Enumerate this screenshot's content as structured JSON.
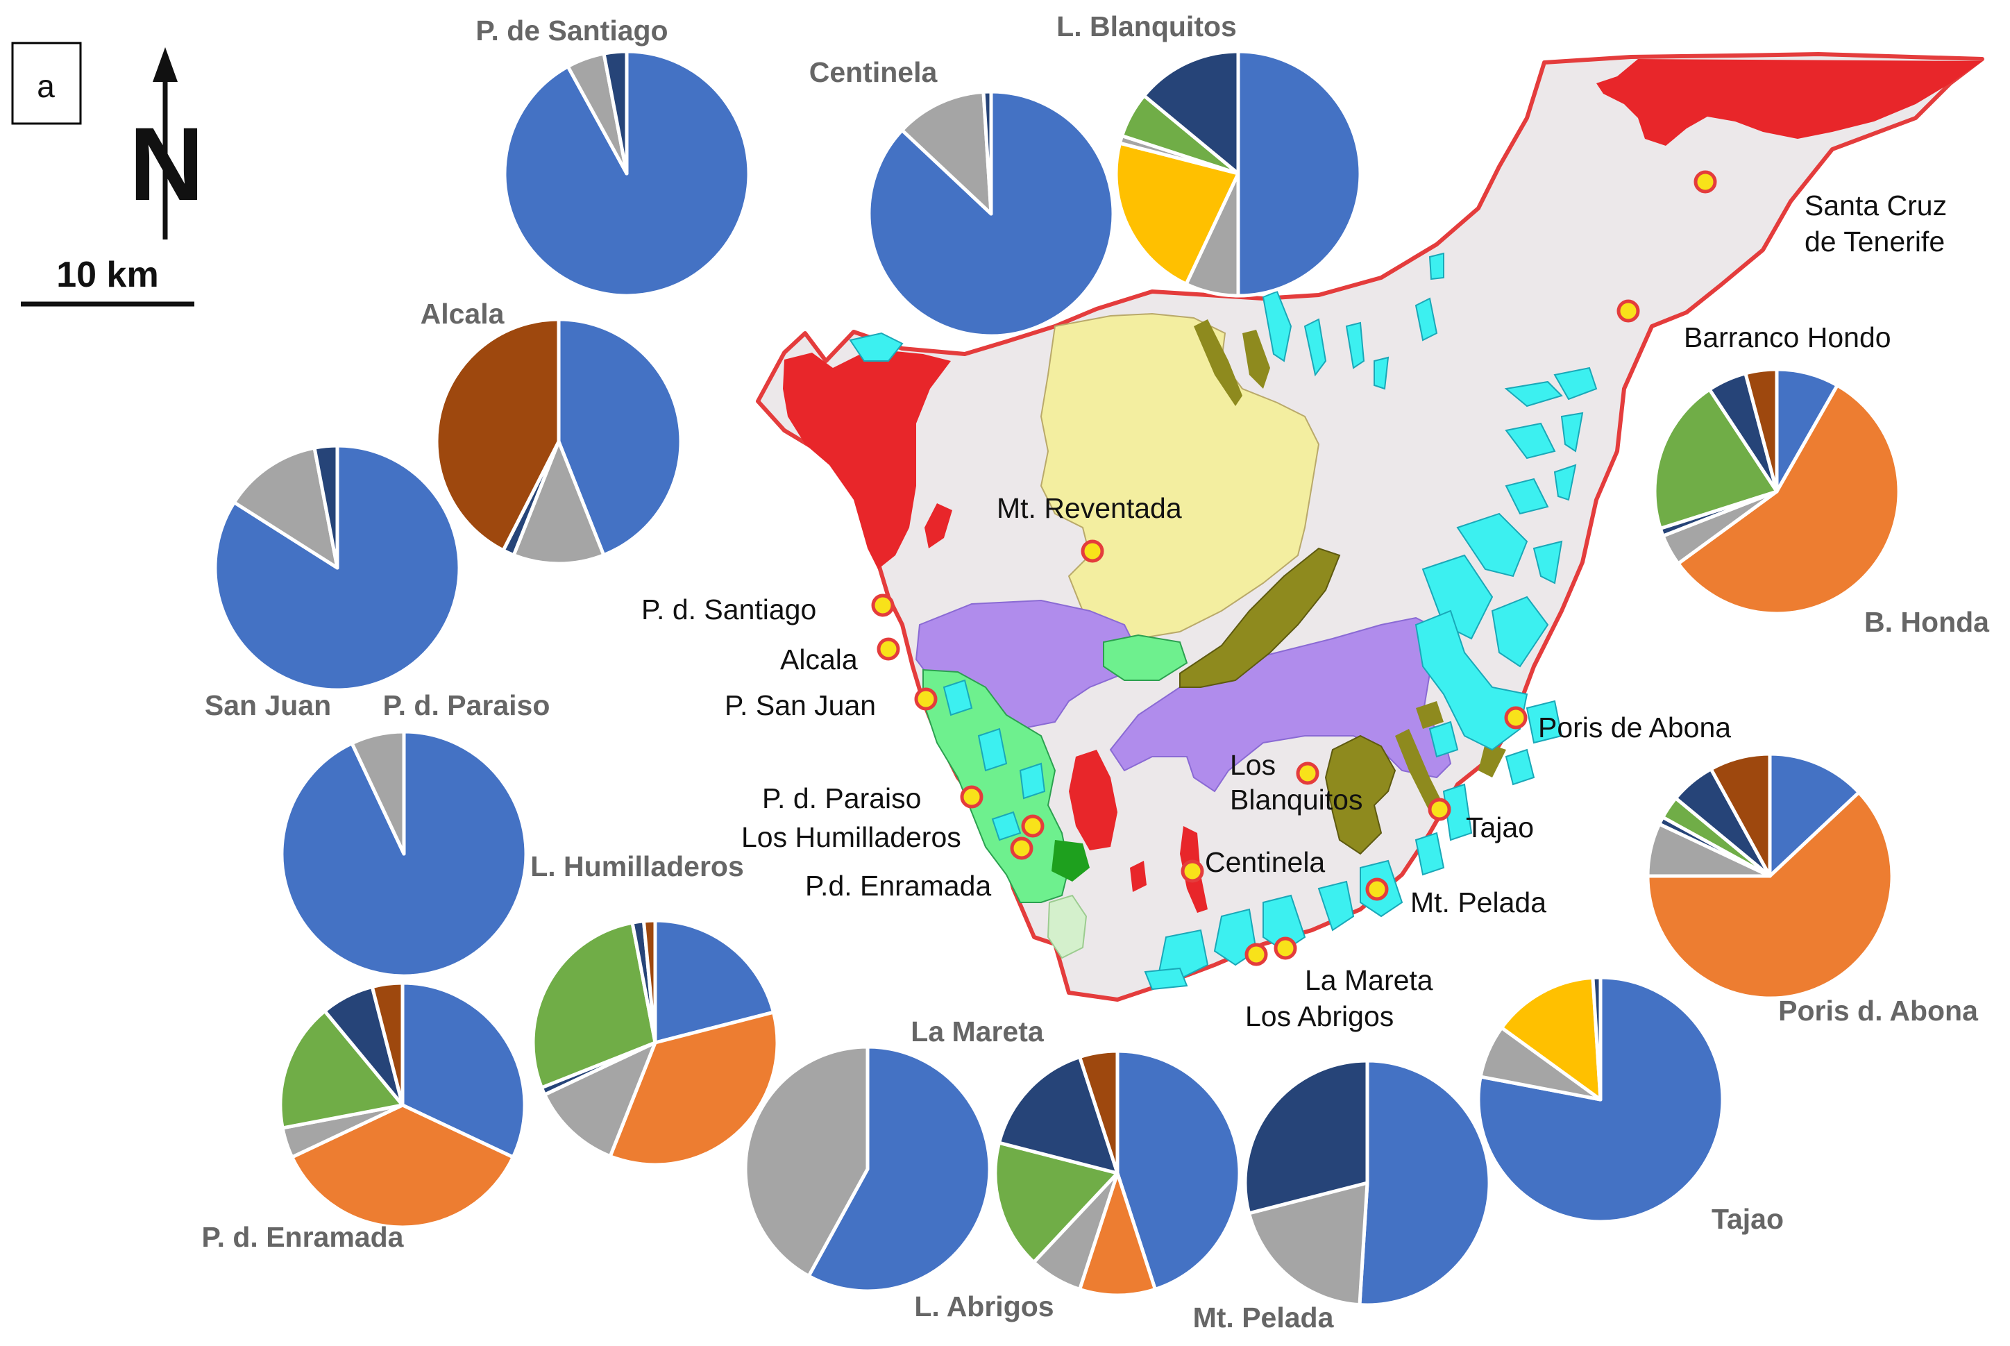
{
  "panel_label": "a",
  "north_arrow_label": "N",
  "scale_bar_label": "10 km",
  "colors": {
    "land": "#ece8ea",
    "coast": "#e43c3c",
    "red_unit": "#e8262a",
    "yellow_unit": "#f3eea0",
    "purple_unit": "#b08cec",
    "cyan_unit": "#3cf0f0",
    "olive_unit": "#8e8a1e",
    "green_unit": "#6ef08e",
    "darkgreen_unit": "#1ea01e",
    "palegreen_unit": "#d4f0cc",
    "site_marker": "#f8e21a",
    "pie_blue": "#4472c4",
    "pie_orange": "#ed7d31",
    "pie_gray": "#a5a5a5",
    "pie_yellow": "#ffc000",
    "pie_green": "#70ad47",
    "pie_navy": "#264478",
    "pie_brown": "#9e480e"
  },
  "site_labels": [
    "Santa Cruz",
    "de Tenerife",
    "Barranco Hondo",
    "Mt. Reventada",
    "P. d. Santiago",
    "Alcala",
    "P. San Juan",
    "P. d. Paraiso",
    "Los Humilladeros",
    "P.d. Enramada",
    "Los",
    "Blanquitos",
    "Centinela",
    "Tajao",
    "Poris de Abona",
    "Mt. Pelada",
    "La Mareta",
    "Los Abrigos"
  ],
  "pies": [
    {
      "label": "P. de Santiago",
      "slices": [
        {
          "color": "pie_blue",
          "value": 92
        },
        {
          "color": "pie_gray",
          "value": 5
        },
        {
          "color": "pie_navy",
          "value": 3
        }
      ]
    },
    {
      "label": "Centinela",
      "slices": [
        {
          "color": "pie_blue",
          "value": 87
        },
        {
          "color": "pie_gray",
          "value": 12
        },
        {
          "color": "pie_navy",
          "value": 1
        }
      ]
    },
    {
      "label": "L. Blanquitos",
      "slices": [
        {
          "color": "pie_blue",
          "value": 50
        },
        {
          "color": "pie_gray",
          "value": 7
        },
        {
          "color": "pie_yellow",
          "value": 22
        },
        {
          "color": "pie_gray",
          "value": 1
        },
        {
          "color": "pie_green",
          "value": 6
        },
        {
          "color": "pie_navy",
          "value": 14
        }
      ]
    },
    {
      "label": "Alcala",
      "slices": [
        {
          "color": "pie_blue",
          "value": 44
        },
        {
          "color": "pie_gray",
          "value": 12
        },
        {
          "color": "pie_navy",
          "value": 1.5
        },
        {
          "color": "pie_brown",
          "value": 42.5
        }
      ]
    },
    {
      "label": "San Juan",
      "slices": [
        {
          "color": "pie_blue",
          "value": 84
        },
        {
          "color": "pie_gray",
          "value": 13
        },
        {
          "color": "pie_navy",
          "value": 3
        }
      ]
    },
    {
      "label": "P. d. Paraiso",
      "slices": [
        {
          "color": "pie_blue",
          "value": 93
        },
        {
          "color": "pie_gray",
          "value": 7
        }
      ]
    },
    {
      "label": "L. Humilladeros",
      "slices": [
        {
          "color": "pie_blue",
          "value": 21
        },
        {
          "color": "pie_orange",
          "value": 35
        },
        {
          "color": "pie_gray",
          "value": 12
        },
        {
          "color": "pie_navy",
          "value": 1
        },
        {
          "color": "pie_green",
          "value": 28
        },
        {
          "color": "pie_navy",
          "value": 1.5
        },
        {
          "color": "pie_brown",
          "value": 1.5
        }
      ]
    },
    {
      "label": "P. d. Enramada",
      "slices": [
        {
          "color": "pie_blue",
          "value": 32
        },
        {
          "color": "pie_orange",
          "value": 36
        },
        {
          "color": "pie_gray",
          "value": 4
        },
        {
          "color": "pie_green",
          "value": 17
        },
        {
          "color": "pie_navy",
          "value": 7
        },
        {
          "color": "pie_brown",
          "value": 4
        }
      ]
    },
    {
      "label": "La Mareta",
      "slices": [
        {
          "color": "pie_blue",
          "value": 58
        },
        {
          "color": "pie_gray",
          "value": 42
        }
      ]
    },
    {
      "label": "L. Abrigos",
      "slices": [
        {
          "color": "pie_blue",
          "value": 45
        },
        {
          "color": "pie_orange",
          "value": 10
        },
        {
          "color": "pie_gray",
          "value": 7
        },
        {
          "color": "pie_green",
          "value": 17
        },
        {
          "color": "pie_navy",
          "value": 16
        },
        {
          "color": "pie_brown",
          "value": 5
        }
      ]
    },
    {
      "label": "Mt. Pelada",
      "slices": [
        {
          "color": "pie_blue",
          "value": 51
        },
        {
          "color": "pie_gray",
          "value": 20
        },
        {
          "color": "pie_navy",
          "value": 29
        }
      ]
    },
    {
      "label": "Tajao",
      "slices": [
        {
          "color": "pie_blue",
          "value": 78
        },
        {
          "color": "pie_gray",
          "value": 7
        },
        {
          "color": "pie_yellow",
          "value": 14
        },
        {
          "color": "pie_navy",
          "value": 1
        }
      ]
    },
    {
      "label": "B. Honda",
      "slices": [
        {
          "color": "pie_blue",
          "value": 8
        },
        {
          "color": "pie_orange",
          "value": 55
        },
        {
          "color": "pie_gray",
          "value": 4
        },
        {
          "color": "pie_navy",
          "value": 1
        },
        {
          "color": "pie_green",
          "value": 20
        },
        {
          "color": "pie_navy",
          "value": 5
        },
        {
          "color": "pie_brown",
          "value": 4
        }
      ]
    },
    {
      "label": "Poris d. Abona",
      "slices": [
        {
          "color": "pie_blue",
          "value": 13
        },
        {
          "color": "pie_orange",
          "value": 62
        },
        {
          "color": "pie_gray",
          "value": 7
        },
        {
          "color": "pie_navy",
          "value": 1
        },
        {
          "color": "pie_green",
          "value": 3
        },
        {
          "color": "pie_navy",
          "value": 6
        },
        {
          "color": "pie_brown",
          "value": 8
        }
      ]
    }
  ]
}
